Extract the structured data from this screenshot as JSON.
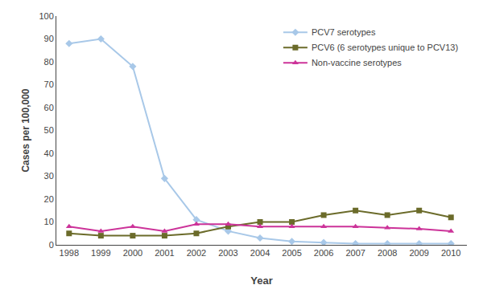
{
  "chart_data": {
    "type": "line",
    "xlabel": "Year",
    "ylabel": "Cases per 100,000",
    "x": [
      1998,
      1999,
      2000,
      2001,
      2002,
      2003,
      2004,
      2005,
      2006,
      2007,
      2008,
      2009,
      2010
    ],
    "series": [
      {
        "name": "PCV7 serotypes",
        "color": "#a8c8e8",
        "marker": "diamond",
        "line_style": "solid",
        "values": [
          88,
          90,
          78,
          29,
          11,
          6,
          3,
          1.5,
          1,
          0.5,
          0.5,
          0.5,
          0.5
        ]
      },
      {
        "name": "PCV6 (6 serotypes unique to PCV13)",
        "color": "#6b6b2a",
        "marker": "square",
        "line_style": "solid",
        "values": [
          5,
          4,
          4,
          4,
          5,
          8,
          10,
          10,
          13,
          15,
          13,
          15,
          12
        ]
      },
      {
        "name": "Non-vaccine serotypes",
        "color": "#cc3399",
        "marker": "triangle-up",
        "line_style": "solid",
        "values": [
          8,
          6,
          8,
          6,
          9,
          9,
          8,
          8,
          8,
          8,
          7.5,
          7,
          6
        ]
      }
    ],
    "xlim": [
      1997.6,
      2010.5
    ],
    "xticks": [
      1998,
      1999,
      2000,
      2001,
      2002,
      2003,
      2004,
      2005,
      2006,
      2007,
      2008,
      2009,
      2010
    ],
    "ylim": [
      0,
      100
    ],
    "yticks": [
      0,
      10,
      20,
      30,
      40,
      50,
      60,
      70,
      80,
      90,
      100
    ],
    "grid": false,
    "legend": "upper right"
  }
}
